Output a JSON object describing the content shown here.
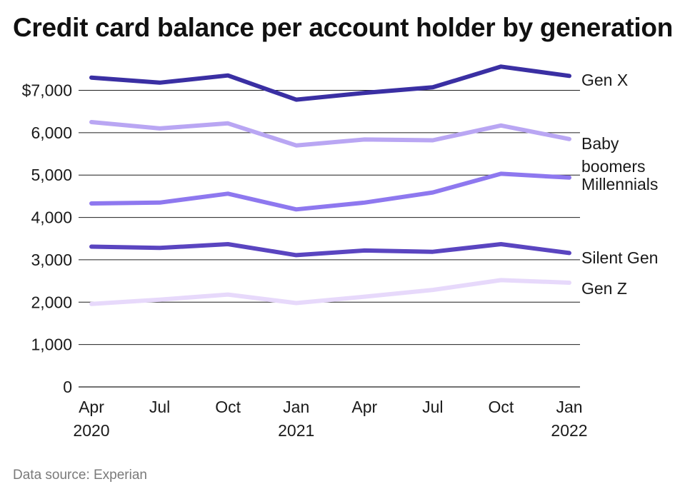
{
  "chart_data": {
    "type": "line",
    "title": "Credit card balance per account holder by generation",
    "source": "Data source: Experian",
    "xlabel": "",
    "ylabel": "",
    "ylim": [
      0,
      7600
    ],
    "grid": true,
    "y_ticks": [
      {
        "value": 0,
        "label": "0"
      },
      {
        "value": 1000,
        "label": "1,000"
      },
      {
        "value": 2000,
        "label": "2,000"
      },
      {
        "value": 3000,
        "label": "3,000"
      },
      {
        "value": 4000,
        "label": "4,000"
      },
      {
        "value": 5000,
        "label": "5,000"
      },
      {
        "value": 6000,
        "label": "6,000"
      },
      {
        "value": 7000,
        "label": "$7,000"
      }
    ],
    "x_tick_labels": [
      [
        "Apr",
        "2020"
      ],
      [
        "Jul"
      ],
      [
        "Oct"
      ],
      [
        "Jan",
        "2021"
      ],
      [
        "Apr"
      ],
      [
        "Jul"
      ],
      [
        "Oct"
      ],
      [
        "Jan",
        "2022"
      ]
    ],
    "categories": [
      "Apr 2020",
      "Jul 2020",
      "Oct 2020",
      "Jan 2021",
      "Apr 2021",
      "Jul 2021",
      "Oct 2021",
      "Jan 2022"
    ],
    "series": [
      {
        "name": "Gen X",
        "label_lines": [
          "Gen X"
        ],
        "color": "#3a2fa3",
        "values": [
          7300,
          7180,
          7350,
          6780,
          6940,
          7070,
          7560,
          7340
        ]
      },
      {
        "name": "Baby boomers",
        "label_lines": [
          "Baby",
          "boomers"
        ],
        "color": "#b9a6f3",
        "values": [
          6250,
          6100,
          6220,
          5700,
          5840,
          5820,
          6170,
          5850
        ]
      },
      {
        "name": "Millennials",
        "label_lines": [
          "Millennials"
        ],
        "color": "#8e78ef",
        "values": [
          4330,
          4350,
          4560,
          4190,
          4350,
          4590,
          5030,
          4940
        ]
      },
      {
        "name": "Silent Gen",
        "label_lines": [
          "Silent Gen"
        ],
        "color": "#5a45c0",
        "values": [
          3310,
          3280,
          3370,
          3110,
          3220,
          3190,
          3370,
          3160
        ]
      },
      {
        "name": "Gen Z",
        "label_lines": [
          "Gen Z"
        ],
        "color": "#e7d9fb",
        "values": [
          1960,
          2060,
          2180,
          1980,
          2130,
          2290,
          2520,
          2460
        ]
      }
    ]
  }
}
